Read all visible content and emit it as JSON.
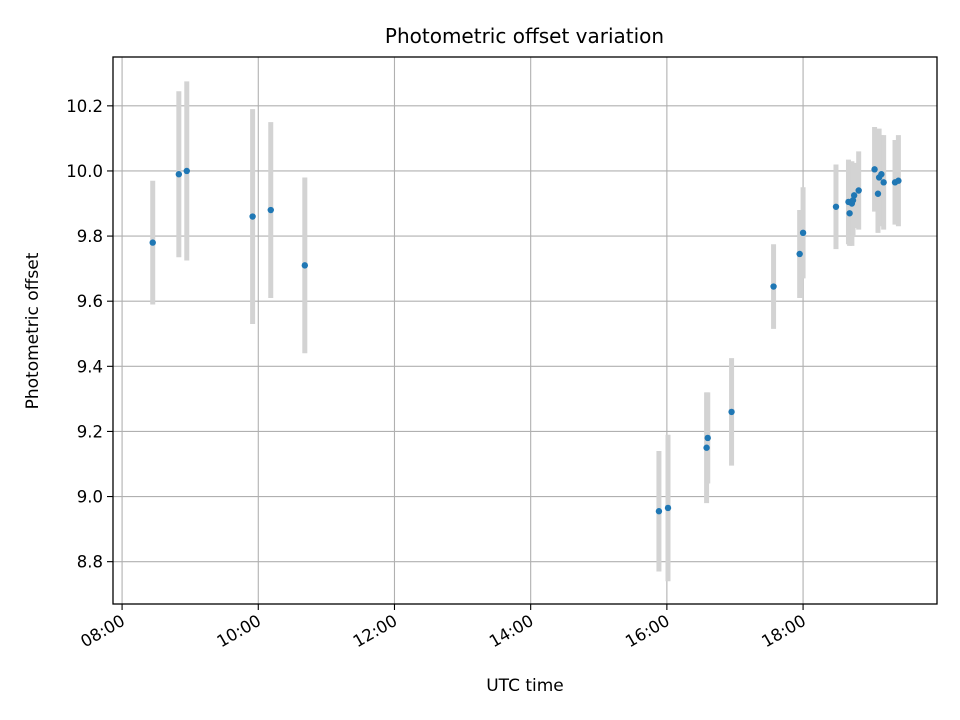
{
  "chart_data": {
    "type": "scatter",
    "title": "Photometric offset variation",
    "xlabel": "UTC time",
    "ylabel": "Photometric offset",
    "xlim": [
      "07:52",
      "19:58"
    ],
    "ylim": [
      8.67,
      10.35
    ],
    "x_ticks": [
      "08:00",
      "10:00",
      "12:00",
      "14:00",
      "16:00",
      "18:00"
    ],
    "y_ticks": [
      8.8,
      9.0,
      9.2,
      9.4,
      9.6,
      9.8,
      10.0,
      10.2
    ],
    "y_tick_labels": [
      "8.8",
      "9.0",
      "9.2",
      "9.4",
      "9.6",
      "9.8",
      "10.0",
      "10.2"
    ],
    "grid": true,
    "point_color": "#1f77b4",
    "errorbar_color": "#d3d3d3",
    "points": [
      {
        "x": "08:27",
        "y": 9.78,
        "yerr": 0.19
      },
      {
        "x": "08:50",
        "y": 9.99,
        "yerr": 0.255
      },
      {
        "x": "08:57",
        "y": 10.0,
        "yerr": 0.275
      },
      {
        "x": "09:55",
        "y": 9.86,
        "yerr": 0.33
      },
      {
        "x": "10:11",
        "y": 9.88,
        "yerr": 0.27
      },
      {
        "x": "10:41",
        "y": 9.71,
        "yerr": 0.27
      },
      {
        "x": "15:53",
        "y": 8.955,
        "yerr": 0.185
      },
      {
        "x": "16:01",
        "y": 8.965,
        "yerr": 0.225
      },
      {
        "x": "16:35",
        "y": 9.15,
        "yerr": 0.17
      },
      {
        "x": "16:36",
        "y": 9.18,
        "yerr": 0.14
      },
      {
        "x": "16:57",
        "y": 9.26,
        "yerr": 0.165
      },
      {
        "x": "17:34",
        "y": 9.645,
        "yerr": 0.13
      },
      {
        "x": "17:57",
        "y": 9.745,
        "yerr": 0.135
      },
      {
        "x": "18:00",
        "y": 9.81,
        "yerr": 0.14
      },
      {
        "x": "18:29",
        "y": 9.89,
        "yerr": 0.13
      },
      {
        "x": "18:40",
        "y": 9.905,
        "yerr": 0.13
      },
      {
        "x": "18:41",
        "y": 9.87,
        "yerr": 0.1
      },
      {
        "x": "18:43",
        "y": 9.9,
        "yerr": 0.13
      },
      {
        "x": "18:44",
        "y": 9.91,
        "yerr": 0.11
      },
      {
        "x": "18:45",
        "y": 9.925,
        "yerr": 0.1
      },
      {
        "x": "18:49",
        "y": 9.94,
        "yerr": 0.12
      },
      {
        "x": "19:03",
        "y": 10.005,
        "yerr": 0.13
      },
      {
        "x": "19:06",
        "y": 9.93,
        "yerr": 0.12
      },
      {
        "x": "19:07",
        "y": 9.98,
        "yerr": 0.15
      },
      {
        "x": "19:09",
        "y": 9.99,
        "yerr": 0.12
      },
      {
        "x": "19:11",
        "y": 9.965,
        "yerr": 0.145
      },
      {
        "x": "19:21",
        "y": 9.965,
        "yerr": 0.13
      },
      {
        "x": "19:24",
        "y": 9.97,
        "yerr": 0.14
      }
    ]
  }
}
